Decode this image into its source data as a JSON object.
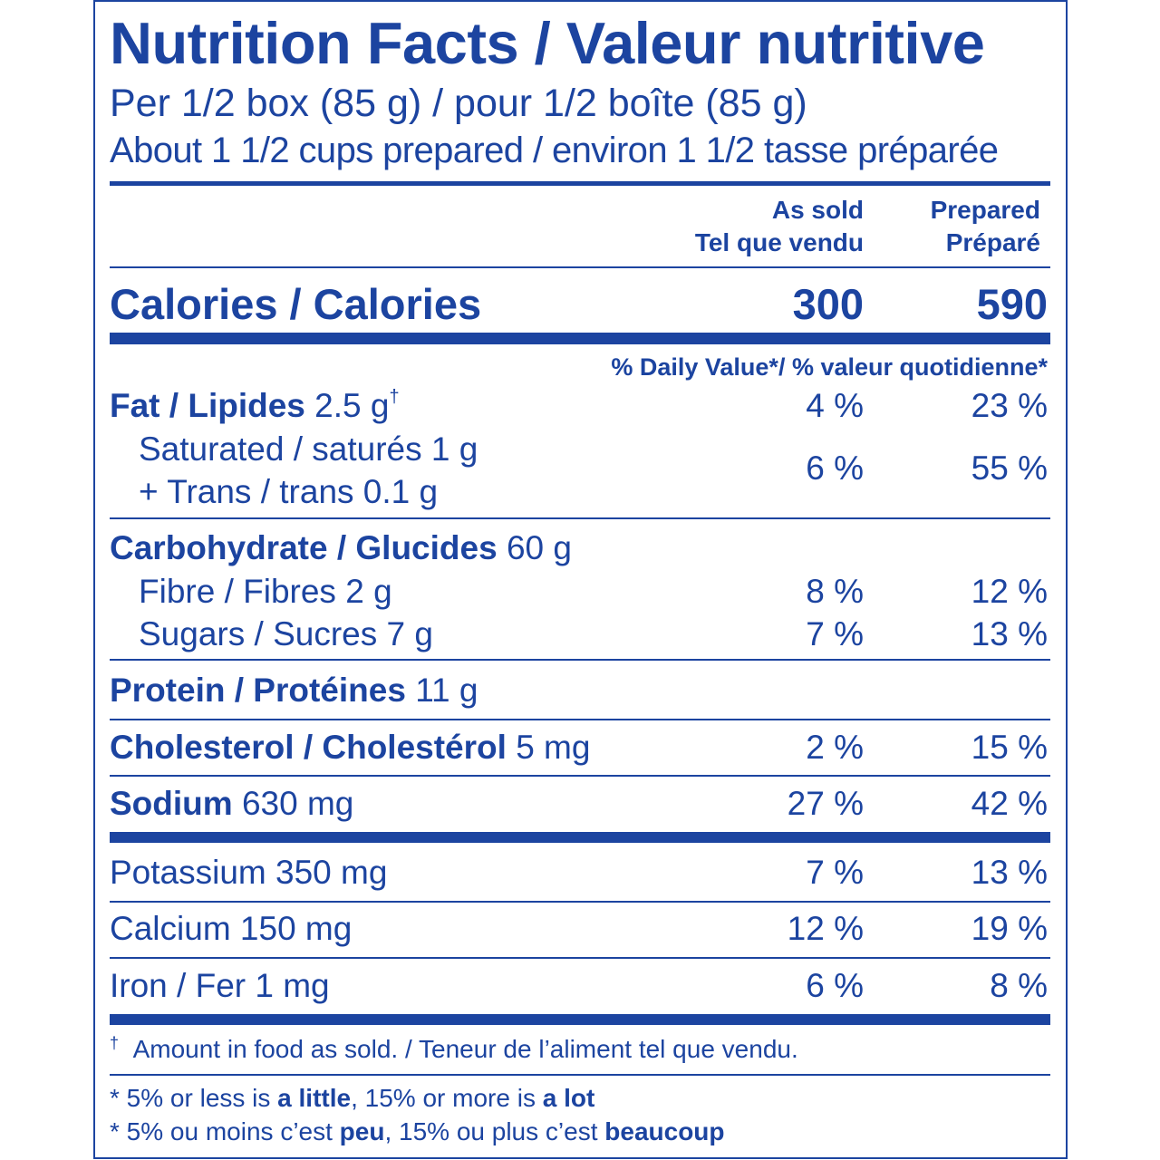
{
  "title": "Nutrition Facts / Valeur nutritive",
  "serving": "Per 1/2 box (85 g) / pour 1/2 boîte (85 g)",
  "serving_prepared": "About 1 1/2 cups prepared / environ 1 1/2 tasse préparée",
  "columns": {
    "as_sold_en": "As sold",
    "as_sold_fr": "Tel que vendu",
    "prepared_en": "Prepared",
    "prepared_fr": "Préparé"
  },
  "calories": {
    "label": "Calories / Calories",
    "as_sold": "300",
    "prepared": "590"
  },
  "dv_header": "% Daily Value*/ % valeur quotidienne*",
  "nutrients": {
    "fat": {
      "label": "Fat / Lipides",
      "amount": "2.5 g",
      "mark": "†",
      "as_sold": "4 %",
      "prepared": "23 %"
    },
    "saturated": {
      "label": "Saturated / saturés 1 g"
    },
    "trans": {
      "label": "+ Trans / trans 0.1 g",
      "as_sold": "6 %",
      "prepared": "55 %"
    },
    "carbohydrate": {
      "label": "Carbohydrate / Glucides",
      "amount": "60 g"
    },
    "fibre": {
      "label": "Fibre / Fibres 2 g",
      "as_sold": "8 %",
      "prepared": "12 %"
    },
    "sugars": {
      "label": "Sugars / Sucres 7 g",
      "as_sold": "7 %",
      "prepared": "13 %"
    },
    "protein": {
      "label": "Protein / Protéines",
      "amount": "11 g"
    },
    "cholesterol": {
      "label": "Cholesterol / Cholestérol",
      "amount": "5 mg",
      "as_sold": "2 %",
      "prepared": "15 %"
    },
    "sodium": {
      "label": "Sodium",
      "amount": "630 mg",
      "as_sold": "27 %",
      "prepared": "42 %"
    },
    "potassium": {
      "label": "Potassium 350 mg",
      "as_sold": "7 %",
      "prepared": "13 %"
    },
    "calcium": {
      "label": "Calcium 150 mg",
      "as_sold": "12 %",
      "prepared": "19 %"
    },
    "iron": {
      "label": "Iron / Fer 1 mg",
      "as_sold": "6 %",
      "prepared": "8 %"
    }
  },
  "footnotes": {
    "dagger_mark": "†",
    "dagger": "Amount in food as sold. / Teneur de l’aliment tel que vendu.",
    "en": {
      "a": "* 5% or less is ",
      "b": "a little",
      "c": ", 15% or more is ",
      "d": "a lot"
    },
    "fr": {
      "a": "* 5% ou moins c’est ",
      "b": "peu",
      "c": ", 15% ou plus c’est ",
      "d": "beaucoup"
    }
  },
  "colors": {
    "ink": "#1c44a0",
    "background": "#ffffff"
  }
}
